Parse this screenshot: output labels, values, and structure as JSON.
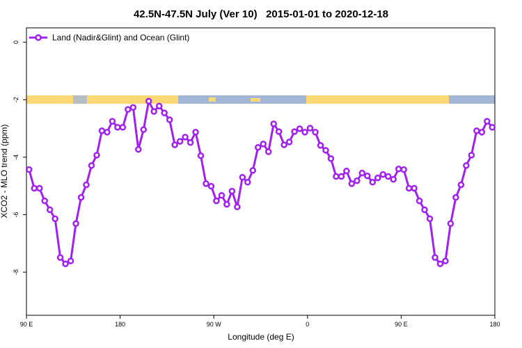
{
  "chart_data": {
    "type": "line",
    "title": "42.5N-47.5N July (Ver 10)   2015-01-01 to 2020-12-18",
    "x_label": "Longitude (deg E)",
    "y_label": "XCO2 - MLO trend (ppm)",
    "x": [
      92.5,
      97.5,
      102.5,
      107.5,
      112.5,
      117.5,
      122.5,
      127.5,
      132.5,
      137.5,
      142.5,
      147.5,
      152.5,
      157.5,
      162.5,
      167.5,
      172.5,
      177.5,
      182.5,
      187.5,
      192.5,
      197.5,
      202.5,
      207.5,
      212.5,
      217.5,
      222.5,
      227.5,
      232.5,
      237.5,
      242.5,
      247.5,
      252.5,
      257.5,
      262.5,
      267.5,
      272.5,
      277.5,
      282.5,
      287.5,
      292.5,
      297.5,
      302.5,
      307.5,
      312.5,
      317.5,
      322.5,
      327.5,
      332.5,
      337.5,
      342.5,
      347.5,
      352.5,
      357.5,
      362.5,
      367.5,
      372.5,
      377.5,
      382.5,
      387.5,
      392.5,
      397.5,
      402.5,
      407.5,
      412.5,
      417.5,
      422.5,
      427.5,
      432.5,
      437.5,
      442.5,
      447.5,
      452.5,
      457.5,
      462.5,
      467.5,
      472.5,
      477.5,
      482.5,
      487.5,
      492.5,
      497.5,
      502.5,
      507.5,
      512.5,
      517.5,
      522.5,
      527.5,
      532.5,
      537.5
    ],
    "series": [
      {
        "name": "Land (Nadir&Glint) and Ocean (Glint)",
        "color": "#a020f0",
        "values": [
          -4.43,
          -5.08,
          -5.08,
          -5.52,
          -5.83,
          -6.14,
          -7.49,
          -7.71,
          -7.61,
          -6.31,
          -5.4,
          -4.96,
          -4.29,
          -3.93,
          -3.08,
          -3.13,
          -2.75,
          -2.96,
          -2.96,
          -2.34,
          -2.27,
          -3.73,
          -3.04,
          -2.05,
          -2.41,
          -2.22,
          -2.46,
          -2.7,
          -3.57,
          -3.45,
          -3.3,
          -3.49,
          -3.13,
          -3.95,
          -4.92,
          -5.01,
          -5.52,
          -5.33,
          -5.64,
          -5.18,
          -5.73,
          -4.7,
          -4.87,
          -4.46,
          -3.66,
          -3.54,
          -3.81,
          -2.84,
          -3.11,
          -3.57,
          -3.47,
          -3.11,
          -3.01,
          -3.13,
          -2.99,
          -3.13,
          -3.59,
          -3.76,
          -4.05,
          -4.67,
          -4.67,
          -4.48,
          -4.92,
          -4.82,
          -4.55,
          -4.65,
          -4.87,
          -4.72,
          -4.6,
          -4.67,
          -4.77,
          -4.41,
          -4.43,
          -5.08,
          -5.08,
          -5.52,
          -5.83,
          -6.14,
          -7.49,
          -7.71,
          -7.61,
          -6.31,
          -5.4,
          -4.96,
          -4.29,
          -3.93,
          -3.08,
          -3.13,
          -2.75,
          -2.96
        ]
      }
    ],
    "xlim": [
      90,
      540
    ],
    "xticks": [
      {
        "value": 90,
        "label": "90 E"
      },
      180,
      {
        "value": 270,
        "label": "90 W"
      },
      {
        "value": 360,
        "label": "0"
      },
      {
        "value": 450,
        "label": "90 E"
      },
      {
        "value": 540,
        "label": "180"
      }
    ],
    "ylim": [
      -9.5,
      0.5
    ],
    "yticks": [
      0,
      -2,
      -4,
      -6,
      -8
    ],
    "legend": "upper left",
    "grid": false
  }
}
